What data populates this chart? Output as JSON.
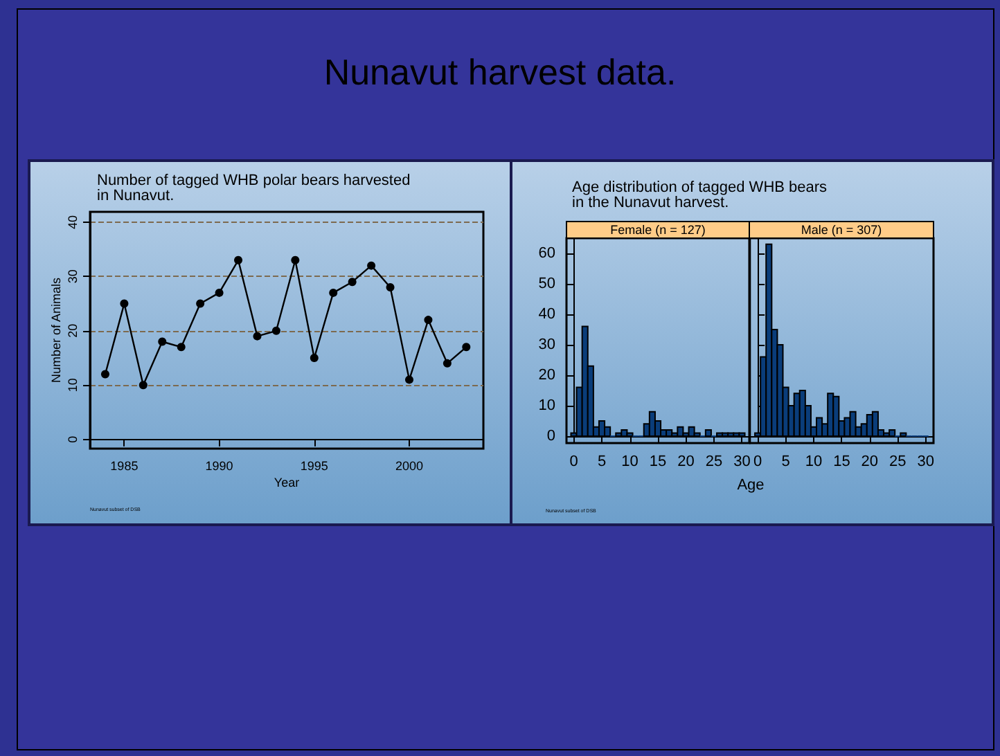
{
  "chart_data": [
    {
      "type": "line",
      "title": "Nunavut harvest data.",
      "subtitle": "Number of tagged WHB polar bears harvested\nin Nunavut.",
      "xlabel": "Year",
      "ylabel": "Number of Animals",
      "annotations": [
        "Nunavut subset of DSB"
      ],
      "x": [
        1984,
        1985,
        1986,
        1987,
        1988,
        1989,
        1990,
        1991,
        1992,
        1993,
        1994,
        1995,
        1996,
        1997,
        1998,
        1999,
        2000,
        2001,
        2002,
        2003
      ],
      "series": [
        {
          "color": "#000000",
          "values": [
            12,
            25,
            10,
            18,
            17,
            25,
            27,
            33,
            19,
            20,
            33,
            15,
            27,
            29,
            32,
            28,
            11,
            22,
            14,
            17
          ]
        }
      ],
      "xlim": [
        1983.2,
        2003.9
      ],
      "xticks": [
        1985,
        1990,
        1995,
        2000
      ],
      "ylim": [
        -1.7,
        41.9
      ],
      "yticks": [
        0,
        10,
        20,
        30,
        40
      ],
      "grid": "y",
      "marker": "circle",
      "line_style": "solid"
    },
    {
      "type": "histogram",
      "title": "Age distribution of tagged WHB bears\nin the Nunavut harvest.",
      "subtitle": "Female (n = 127)",
      "xlabel": "Age",
      "annotations": [
        "Nunavut subset of DSB"
      ],
      "bins": [
        -0.5,
        0.5,
        1.5,
        2.5,
        3.5,
        4.5,
        5.5,
        6.5,
        7.5,
        8.5,
        9.5,
        10.5,
        11.5,
        12.5,
        13.5,
        14.5,
        15.5,
        16.5,
        17.5,
        18.5,
        19.5,
        20.5,
        21.5,
        22.5,
        23.5,
        24.5,
        25.5,
        26.5,
        27.5,
        28.5,
        29.5,
        30.5
      ],
      "values": [
        1,
        16,
        36,
        23,
        3,
        5,
        3,
        0,
        1,
        2,
        1,
        0,
        0,
        4,
        8,
        5,
        2,
        2,
        1,
        3,
        1,
        3,
        1,
        0,
        2,
        0,
        1,
        1,
        1,
        1,
        1
      ],
      "color": "#0a3d7a",
      "xlim": [
        -1.3,
        31.3
      ],
      "xticks": [
        0,
        5,
        10,
        15,
        20,
        25,
        30
      ],
      "ylim": [
        -2.3,
        65
      ],
      "yticks": [
        0,
        10,
        20,
        30,
        40,
        50,
        60
      ]
    },
    {
      "type": "histogram",
      "subtitle": "Male (n = 307)",
      "bins": [
        -0.5,
        0.5,
        1.5,
        2.5,
        3.5,
        4.5,
        5.5,
        6.5,
        7.5,
        8.5,
        9.5,
        10.5,
        11.5,
        12.5,
        13.5,
        14.5,
        15.5,
        16.5,
        17.5,
        18.5,
        19.5,
        20.5,
        21.5,
        22.5,
        23.5,
        24.5,
        25.5,
        26.5,
        27.5,
        28.5,
        29.5,
        30.5
      ],
      "values": [
        1,
        26,
        63,
        35,
        30,
        16,
        10,
        14,
        15,
        10,
        3,
        6,
        4,
        14,
        13,
        5,
        6,
        8,
        3,
        4,
        7,
        8,
        2,
        1,
        2,
        0,
        1,
        0,
        0,
        0,
        0
      ],
      "color": "#0a3d7a",
      "xlim": [
        -1.4,
        31.4
      ],
      "xticks": [
        0,
        5,
        10,
        15,
        20,
        25,
        30
      ],
      "ylim": [
        -2.3,
        65
      ],
      "yticks": [
        0,
        10,
        20,
        30,
        40,
        50,
        60
      ],
      "tick_labels": "x"
    }
  ]
}
